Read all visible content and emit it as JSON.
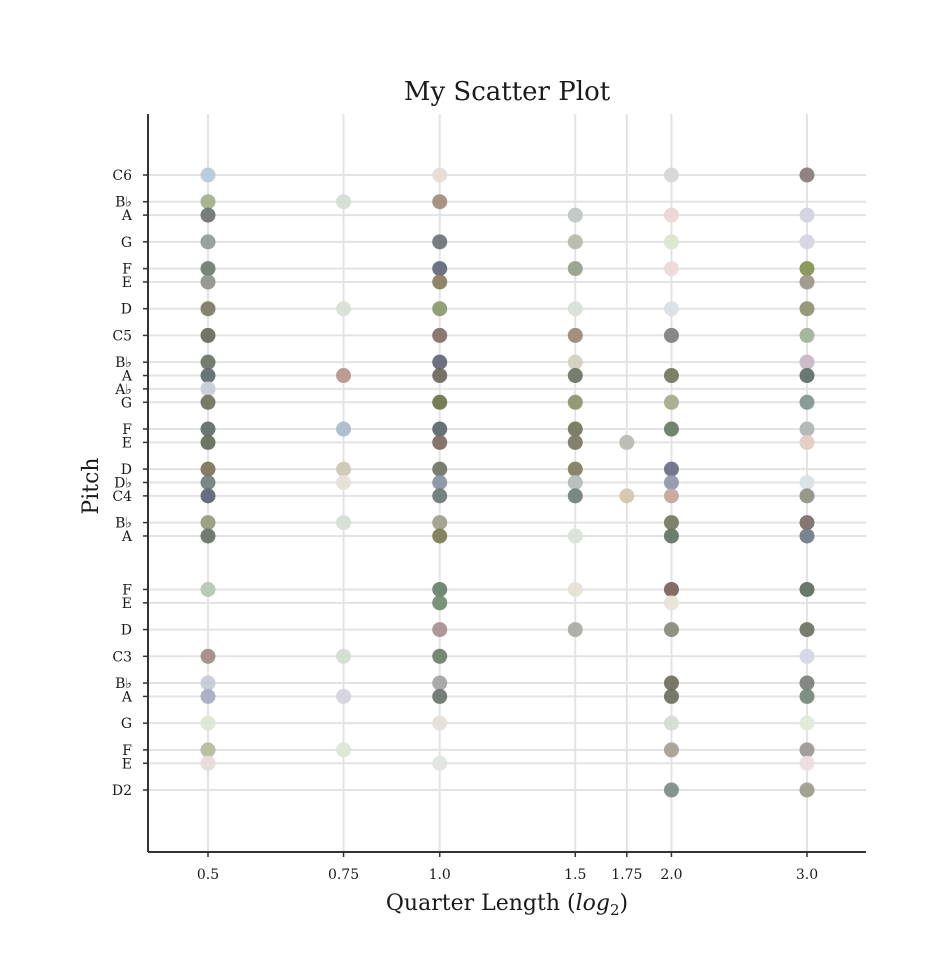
{
  "chart_data": {
    "type": "scatter",
    "title": "My Scatter Plot",
    "xlabel": "Quarter Length (",
    "xlabel_italic": "log",
    "xlabel_sub": "2",
    "xlabel_close": ")",
    "ylabel": "Pitch",
    "x_scale": "log2",
    "grid": true,
    "x_ticks": [
      0.5,
      0.75,
      1.0,
      1.5,
      1.75,
      2.0,
      3.0
    ],
    "x_tick_labels": [
      "0.5",
      "0.75",
      "1.0",
      "1.5",
      "1.75",
      "2.0",
      "3.0"
    ],
    "y_ticks": [
      {
        "label": "C6",
        "midi": 84
      },
      {
        "label": "B♭",
        "midi": 82
      },
      {
        "label": "A",
        "midi": 81
      },
      {
        "label": "G",
        "midi": 79
      },
      {
        "label": "F",
        "midi": 77
      },
      {
        "label": "E",
        "midi": 76
      },
      {
        "label": "D",
        "midi": 74
      },
      {
        "label": "C5",
        "midi": 72
      },
      {
        "label": "B♭",
        "midi": 70
      },
      {
        "label": "A",
        "midi": 69
      },
      {
        "label": "A♭",
        "midi": 68
      },
      {
        "label": "G",
        "midi": 67
      },
      {
        "label": "F",
        "midi": 65
      },
      {
        "label": "E",
        "midi": 64
      },
      {
        "label": "D",
        "midi": 62
      },
      {
        "label": "D♭",
        "midi": 61
      },
      {
        "label": "C4",
        "midi": 60
      },
      {
        "label": "B♭",
        "midi": 58
      },
      {
        "label": "A",
        "midi": 57
      },
      {
        "label": "F",
        "midi": 53
      },
      {
        "label": "E",
        "midi": 52
      },
      {
        "label": "D",
        "midi": 50
      },
      {
        "label": "C3",
        "midi": 48
      },
      {
        "label": "B♭",
        "midi": 46
      },
      {
        "label": "A",
        "midi": 45
      },
      {
        "label": "G",
        "midi": 43
      },
      {
        "label": "F",
        "midi": 41
      },
      {
        "label": "E",
        "midi": 40
      },
      {
        "label": "D2",
        "midi": 38
      }
    ],
    "ylim": [
      33,
      89
    ],
    "points": [
      {
        "x": 0.5,
        "y": 84,
        "color": "#b7c9d9"
      },
      {
        "x": 0.5,
        "y": 82,
        "color": "#a3b08a"
      },
      {
        "x": 0.5,
        "y": 81,
        "color": "#6e7372"
      },
      {
        "x": 0.5,
        "y": 79,
        "color": "#939a96"
      },
      {
        "x": 0.5,
        "y": 77,
        "color": "#6e7b6c"
      },
      {
        "x": 0.5,
        "y": 76,
        "color": "#8f938a"
      },
      {
        "x": 0.5,
        "y": 74,
        "color": "#7c7963"
      },
      {
        "x": 0.5,
        "y": 72,
        "color": "#656a5b"
      },
      {
        "x": 0.5,
        "y": 70,
        "color": "#677363"
      },
      {
        "x": 0.5,
        "y": 69,
        "color": "#5b6b6a"
      },
      {
        "x": 0.5,
        "y": 68,
        "color": "#c9cad8"
      },
      {
        "x": 0.5,
        "y": 67,
        "color": "#6d7258"
      },
      {
        "x": 0.5,
        "y": 65,
        "color": "#5f6c68"
      },
      {
        "x": 0.5,
        "y": 64,
        "color": "#616c55"
      },
      {
        "x": 0.5,
        "y": 62,
        "color": "#7d7258"
      },
      {
        "x": 0.5,
        "y": 61,
        "color": "#707e7c"
      },
      {
        "x": 0.5,
        "y": 60,
        "color": "#5b6474"
      },
      {
        "x": 0.5,
        "y": 58,
        "color": "#959b7d"
      },
      {
        "x": 0.5,
        "y": 57,
        "color": "#667266"
      },
      {
        "x": 0.5,
        "y": 53,
        "color": "#b3c8b3"
      },
      {
        "x": 0.5,
        "y": 48,
        "color": "#a18a84"
      },
      {
        "x": 0.5,
        "y": 46,
        "color": "#c8c9d7"
      },
      {
        "x": 0.5,
        "y": 45,
        "color": "#a6acc2"
      },
      {
        "x": 0.5,
        "y": 43,
        "color": "#dce5d2"
      },
      {
        "x": 0.5,
        "y": 41,
        "color": "#b6bb9c"
      },
      {
        "x": 0.5,
        "y": 40,
        "color": "#e7d9d9"
      },
      {
        "x": 0.75,
        "y": 82,
        "color": "#d4ddd0"
      },
      {
        "x": 0.75,
        "y": 74,
        "color": "#d8e0d4"
      },
      {
        "x": 0.75,
        "y": 69,
        "color": "#b8928a"
      },
      {
        "x": 0.75,
        "y": 65,
        "color": "#a8bccb"
      },
      {
        "x": 0.75,
        "y": 62,
        "color": "#cfc7b4"
      },
      {
        "x": 0.75,
        "y": 61,
        "color": "#e6e0d5"
      },
      {
        "x": 0.75,
        "y": 58,
        "color": "#d6ddd2"
      },
      {
        "x": 0.75,
        "y": 48,
        "color": "#d3dccf"
      },
      {
        "x": 0.75,
        "y": 45,
        "color": "#d4d3e1"
      },
      {
        "x": 0.75,
        "y": 41,
        "color": "#dbe6d5"
      },
      {
        "x": 1.0,
        "y": 84,
        "color": "#e6dcd5"
      },
      {
        "x": 1.0,
        "y": 82,
        "color": "#a08b76"
      },
      {
        "x": 1.0,
        "y": 79,
        "color": "#6c7375"
      },
      {
        "x": 1.0,
        "y": 77,
        "color": "#626778"
      },
      {
        "x": 1.0,
        "y": 76,
        "color": "#867d5b"
      },
      {
        "x": 1.0,
        "y": 74,
        "color": "#8a9a6a"
      },
      {
        "x": 1.0,
        "y": 72,
        "color": "#806f64"
      },
      {
        "x": 1.0,
        "y": 70,
        "color": "#636577"
      },
      {
        "x": 1.0,
        "y": 69,
        "color": "#6c6759"
      },
      {
        "x": 1.0,
        "y": 67,
        "color": "#6b7248"
      },
      {
        "x": 1.0,
        "y": 65,
        "color": "#59676c"
      },
      {
        "x": 1.0,
        "y": 64,
        "color": "#7a6a5e"
      },
      {
        "x": 1.0,
        "y": 62,
        "color": "#6c7465"
      },
      {
        "x": 1.0,
        "y": 61,
        "color": "#8593a1"
      },
      {
        "x": 1.0,
        "y": 60,
        "color": "#6b7878"
      },
      {
        "x": 1.0,
        "y": 58,
        "color": "#9ea08a"
      },
      {
        "x": 1.0,
        "y": 57,
        "color": "#7c7b53"
      },
      {
        "x": 1.0,
        "y": 53,
        "color": "#668169"
      },
      {
        "x": 1.0,
        "y": 52,
        "color": "#6f8a6e"
      },
      {
        "x": 1.0,
        "y": 50,
        "color": "#a89090"
      },
      {
        "x": 1.0,
        "y": 48,
        "color": "#6a7f67"
      },
      {
        "x": 1.0,
        "y": 46,
        "color": "#a4a3a4"
      },
      {
        "x": 1.0,
        "y": 45,
        "color": "#697570"
      },
      {
        "x": 1.0,
        "y": 43,
        "color": "#e6e0da"
      },
      {
        "x": 1.0,
        "y": 40,
        "color": "#dfe6de"
      },
      {
        "x": 1.5,
        "y": 81,
        "color": "#bfc5c2"
      },
      {
        "x": 1.5,
        "y": 79,
        "color": "#b5b8a9"
      },
      {
        "x": 1.5,
        "y": 77,
        "color": "#97a08b"
      },
      {
        "x": 1.5,
        "y": 74,
        "color": "#d8e0d4"
      },
      {
        "x": 1.5,
        "y": 72,
        "color": "#9a8873"
      },
      {
        "x": 1.5,
        "y": 70,
        "color": "#d4cfbe"
      },
      {
        "x": 1.5,
        "y": 69,
        "color": "#6a7363"
      },
      {
        "x": 1.5,
        "y": 67,
        "color": "#8e9369"
      },
      {
        "x": 1.5,
        "y": 65,
        "color": "#727459"
      },
      {
        "x": 1.5,
        "y": 64,
        "color": "#7b7663"
      },
      {
        "x": 1.5,
        "y": 62,
        "color": "#7e7d61"
      },
      {
        "x": 1.5,
        "y": 61,
        "color": "#b5bcb9"
      },
      {
        "x": 1.5,
        "y": 60,
        "color": "#6f7e7c"
      },
      {
        "x": 1.5,
        "y": 57,
        "color": "#d8e3d4"
      },
      {
        "x": 1.5,
        "y": 53,
        "color": "#e3e2d2"
      },
      {
        "x": 1.5,
        "y": 50,
        "color": "#a9aba3"
      },
      {
        "x": 1.75,
        "y": 64,
        "color": "#b5bab0"
      },
      {
        "x": 1.75,
        "y": 60,
        "color": "#d3c6ab"
      },
      {
        "x": 2.0,
        "y": 84,
        "color": "#d6d6d6"
      },
      {
        "x": 2.0,
        "y": 81,
        "color": "#ead7d6"
      },
      {
        "x": 2.0,
        "y": 79,
        "color": "#dde5cc"
      },
      {
        "x": 2.0,
        "y": 77,
        "color": "#ebd9d8"
      },
      {
        "x": 2.0,
        "y": 74,
        "color": "#d9e0e6"
      },
      {
        "x": 2.0,
        "y": 72,
        "color": "#7d7f80"
      },
      {
        "x": 2.0,
        "y": 69,
        "color": "#737659"
      },
      {
        "x": 2.0,
        "y": 67,
        "color": "#a4aa8a"
      },
      {
        "x": 2.0,
        "y": 65,
        "color": "#667c63"
      },
      {
        "x": 2.0,
        "y": 62,
        "color": "#6b6c83"
      },
      {
        "x": 2.0,
        "y": 61,
        "color": "#8f96ae"
      },
      {
        "x": 2.0,
        "y": 60,
        "color": "#c4a69b"
      },
      {
        "x": 2.0,
        "y": 58,
        "color": "#75775f"
      },
      {
        "x": 2.0,
        "y": 57,
        "color": "#5e7463"
      },
      {
        "x": 2.0,
        "y": 53,
        "color": "#7b5f57"
      },
      {
        "x": 2.0,
        "y": 52,
        "color": "#e8e2d6"
      },
      {
        "x": 2.0,
        "y": 50,
        "color": "#858a79"
      },
      {
        "x": 2.0,
        "y": 46,
        "color": "#716d58"
      },
      {
        "x": 2.0,
        "y": 45,
        "color": "#6a6e5f"
      },
      {
        "x": 2.0,
        "y": 43,
        "color": "#d5dcd3"
      },
      {
        "x": 2.0,
        "y": 41,
        "color": "#a5a090"
      },
      {
        "x": 2.0,
        "y": 38,
        "color": "#7d8a85"
      },
      {
        "x": 3.0,
        "y": 84,
        "color": "#857a7a"
      },
      {
        "x": 3.0,
        "y": 81,
        "color": "#d2d2de"
      },
      {
        "x": 3.0,
        "y": 79,
        "color": "#d6d4e0"
      },
      {
        "x": 3.0,
        "y": 77,
        "color": "#83904f"
      },
      {
        "x": 3.0,
        "y": 76,
        "color": "#9b9688"
      },
      {
        "x": 3.0,
        "y": 74,
        "color": "#8e9170"
      },
      {
        "x": 3.0,
        "y": 72,
        "color": "#9fb394"
      },
      {
        "x": 3.0,
        "y": 70,
        "color": "#c6b9c4"
      },
      {
        "x": 3.0,
        "y": 69,
        "color": "#5d6e67"
      },
      {
        "x": 3.0,
        "y": 67,
        "color": "#81958f"
      },
      {
        "x": 3.0,
        "y": 65,
        "color": "#aeb5b2"
      },
      {
        "x": 3.0,
        "y": 64,
        "color": "#e2ccc2"
      },
      {
        "x": 3.0,
        "y": 61,
        "color": "#d8e2e8"
      },
      {
        "x": 3.0,
        "y": 60,
        "color": "#8d9183"
      },
      {
        "x": 3.0,
        "y": 58,
        "color": "#7a6e66"
      },
      {
        "x": 3.0,
        "y": 57,
        "color": "#6f7c86"
      },
      {
        "x": 3.0,
        "y": 53,
        "color": "#5c6b60"
      },
      {
        "x": 3.0,
        "y": 50,
        "color": "#6e7261"
      },
      {
        "x": 3.0,
        "y": 48,
        "color": "#d5d6e2"
      },
      {
        "x": 3.0,
        "y": 46,
        "color": "#7a7f78"
      },
      {
        "x": 3.0,
        "y": 45,
        "color": "#74887a"
      },
      {
        "x": 3.0,
        "y": 43,
        "color": "#e1e9da"
      },
      {
        "x": 3.0,
        "y": 41,
        "color": "#9c9697"
      },
      {
        "x": 3.0,
        "y": 40,
        "color": "#ebdddd"
      },
      {
        "x": 3.0,
        "y": 38,
        "color": "#9a9b87"
      }
    ]
  }
}
